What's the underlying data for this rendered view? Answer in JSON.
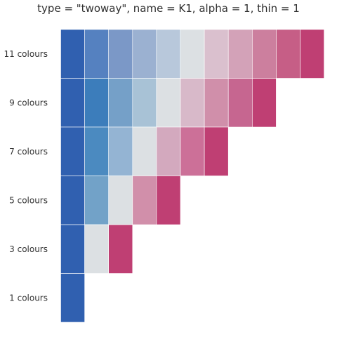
{
  "chart_data": {
    "type": "heatmap",
    "title": "type = \"twoway\", name = K1, alpha = 1, thin = 1",
    "xlabel": "",
    "ylabel": "",
    "grid": false,
    "rows": [
      {
        "label": "11 colours",
        "colors": [
          "#3060B0",
          "#5581C0",
          "#7B98C7",
          "#9BB1D1",
          "#B8C8DB",
          "#DCE0E3",
          "#DAC0CE",
          "#D3A2B8",
          "#CC7F9E",
          "#C65E86",
          "#BF3F73"
        ]
      },
      {
        "label": "9 colours",
        "colors": [
          "#3060B0",
          "#3C7DBB",
          "#75A0C8",
          "#A8C2D6",
          "#DCE0E3",
          "#D8B9C9",
          "#D08FAA",
          "#C66690",
          "#BF3F73"
        ]
      },
      {
        "label": "7 colours",
        "colors": [
          "#3060B0",
          "#4B8AC0",
          "#94B4D3",
          "#DCE0E3",
          "#D3A9BE",
          "#CC7098",
          "#BF3F73"
        ]
      },
      {
        "label": "5 colours",
        "colors": [
          "#3060B0",
          "#72A2C8",
          "#DCE0E3",
          "#D18FAA",
          "#BF3F73"
        ]
      },
      {
        "label": "3 colours",
        "colors": [
          "#3060B0",
          "#DCE0E3",
          "#BF3F73"
        ]
      },
      {
        "label": "1 colours",
        "colors": [
          "#3060B0"
        ]
      }
    ]
  }
}
